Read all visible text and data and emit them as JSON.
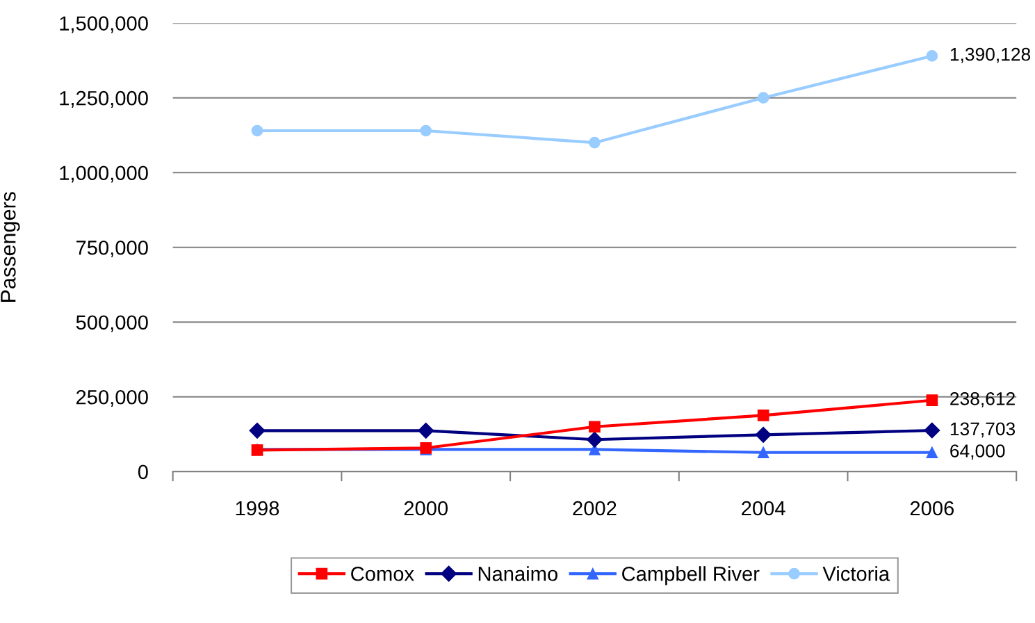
{
  "chart_data": {
    "type": "line",
    "ylabel": "Passengers",
    "categories": [
      "1998",
      "2000",
      "2002",
      "2004",
      "2006"
    ],
    "series": [
      {
        "name": "Comox",
        "color": "#ff0000",
        "marker": "square",
        "values": [
          72000,
          79000,
          150000,
          188000,
          238612
        ],
        "value_labels": [
          null,
          null,
          null,
          null,
          "238,612"
        ]
      },
      {
        "name": "Nanaimo",
        "color": "#000080",
        "marker": "diamond",
        "values": [
          137000,
          137000,
          107000,
          123000,
          137703
        ],
        "value_labels": [
          null,
          null,
          null,
          null,
          "137,703"
        ]
      },
      {
        "name": "Campbell River",
        "color": "#3366ff",
        "marker": "triangle",
        "values": [
          74000,
          74000,
          74000,
          64000,
          64000
        ],
        "value_labels": [
          null,
          null,
          null,
          null,
          "64,000"
        ]
      },
      {
        "name": "Victoria",
        "color": "#99ccff",
        "marker": "circle",
        "values": [
          1140000,
          1140000,
          1100000,
          1250000,
          1390128
        ],
        "value_labels": [
          null,
          null,
          null,
          null,
          "1,390,128"
        ]
      }
    ],
    "ylim": [
      0,
      1500000
    ],
    "yticks": [
      0,
      {
        "value": 250000,
        "label": "250,000"
      },
      {
        "value": 500000,
        "label": "500,000"
      },
      {
        "value": 750000,
        "label": "750,000"
      },
      {
        "value": 1000000,
        "label": "1,000,000"
      },
      {
        "value": 1250000,
        "label": "1,250,000"
      },
      {
        "value": 1500000,
        "label": "1,500,000"
      }
    ],
    "grid": "y",
    "legend": "bottom",
    "line_style": "solid"
  }
}
